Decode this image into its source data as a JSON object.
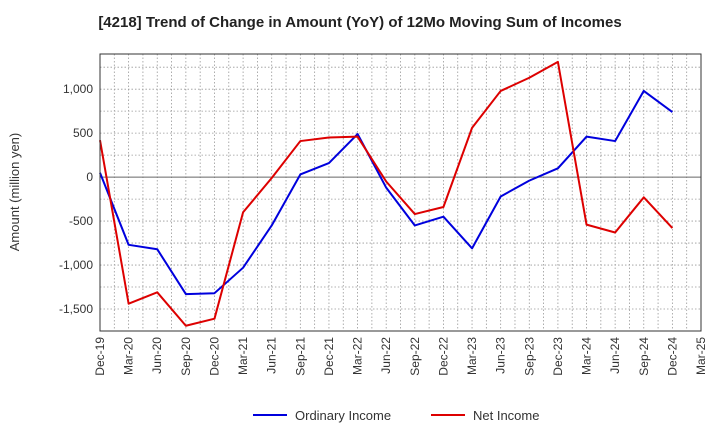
{
  "chart_data": {
    "type": "line",
    "title": "[4218]  Trend of Change in Amount (YoY) of 12Mo Moving Sum of Incomes",
    "xlabel": "",
    "ylabel": "Amount (million yen)",
    "ylim": [
      -1750,
      1400
    ],
    "yticks": [
      1000,
      500,
      0,
      -500,
      -1000,
      -1500
    ],
    "ytick_labels": [
      "1,000",
      "500",
      "0",
      "-500",
      "-1,000",
      "-1,500"
    ],
    "categories": [
      "Dec-19",
      "Mar-20",
      "Jun-20",
      "Sep-20",
      "Dec-20",
      "Mar-21",
      "Jun-21",
      "Sep-21",
      "Dec-21",
      "Mar-22",
      "Jun-22",
      "Sep-22",
      "Dec-22",
      "Mar-23",
      "Jun-23",
      "Sep-23",
      "Dec-23",
      "Mar-24",
      "Jun-24",
      "Sep-24",
      "Dec-24",
      "Mar-25"
    ],
    "grid": true,
    "legend_position": "bottom",
    "series": [
      {
        "name": "Ordinary Income",
        "color": "#0000dd",
        "values": [
          50,
          -770,
          -820,
          -1330,
          -1320,
          -1030,
          -550,
          30,
          160,
          490,
          -120,
          -550,
          -450,
          -810,
          -220,
          -40,
          100,
          460,
          410,
          980,
          740,
          null
        ]
      },
      {
        "name": "Net Income",
        "color": "#dd0000",
        "values": [
          420,
          -1440,
          -1310,
          -1690,
          -1610,
          -400,
          -10,
          410,
          450,
          460,
          -50,
          -420,
          -340,
          560,
          980,
          1130,
          1310,
          -540,
          -630,
          -230,
          -580,
          null
        ]
      }
    ]
  }
}
